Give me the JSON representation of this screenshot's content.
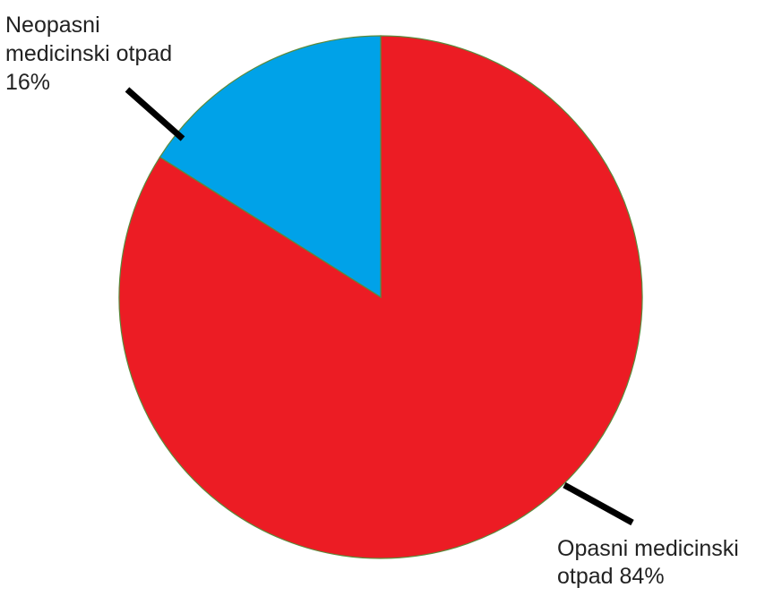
{
  "chart_data": {
    "type": "pie",
    "title": "",
    "start_angle_deg": 0,
    "direction": "clockwise",
    "slices": [
      {
        "label_lines": [
          "Opasni medicinski",
          "otpad 84%"
        ],
        "value": 84,
        "color": "#ec1c24"
      },
      {
        "label_lines": [
          "Neopasni",
          "medicinski otpad",
          "16%"
        ],
        "value": 16,
        "color": "#00a2e8"
      }
    ],
    "legend": "none",
    "leader_line_color": "#000000"
  }
}
